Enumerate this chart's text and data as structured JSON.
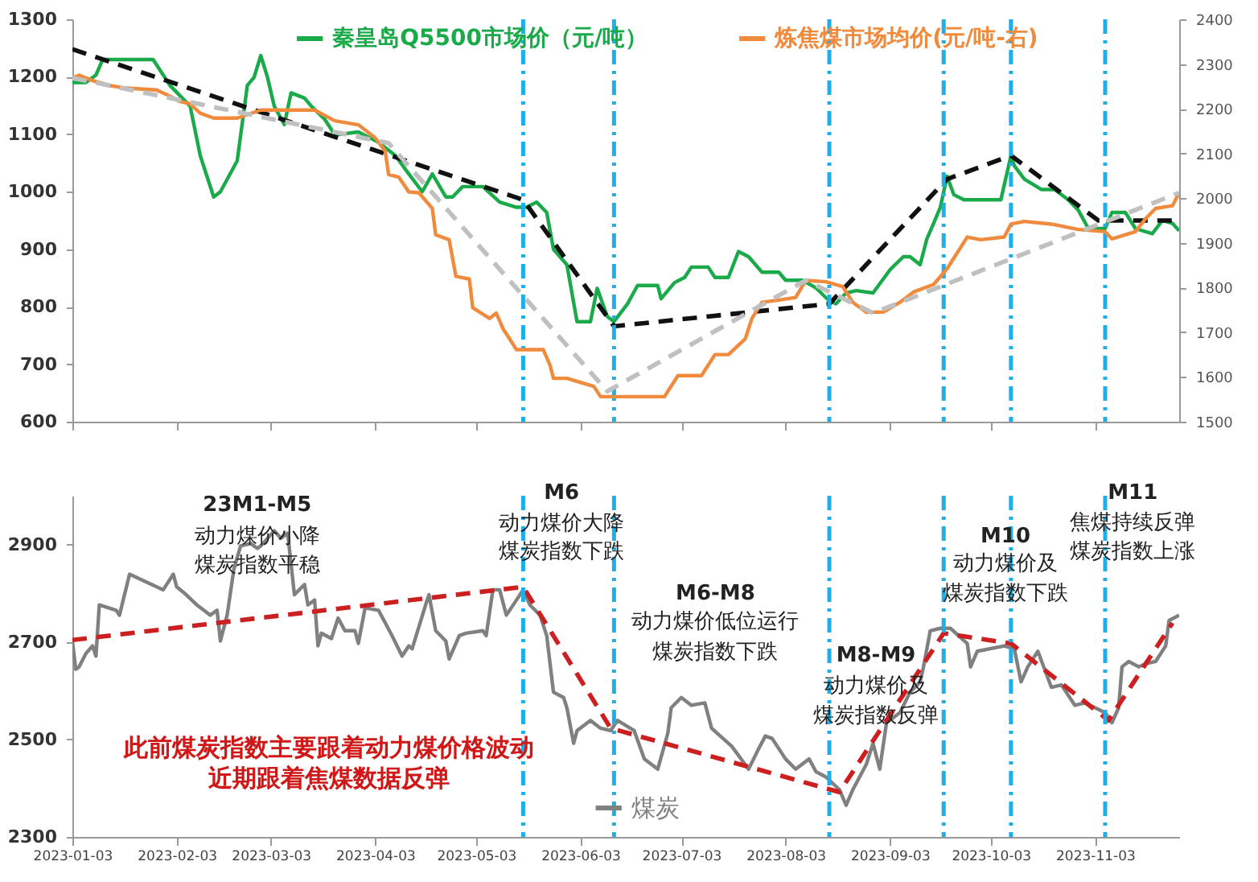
{
  "chart_data": [
    {
      "type": "line",
      "legend": "top",
      "tick_labels": "y",
      "xlim": [
        "2023-01-03",
        "2023-11-28"
      ],
      "xticks": [
        "2023-01-03",
        "2023-02-03",
        "2023-03-03",
        "2023-04-03",
        "2023-05-03",
        "2023-06-03",
        "2023-07-03",
        "2023-08-03",
        "2023-09-03",
        "2023-10-03",
        "2023-11-03"
      ],
      "ylim": [
        600,
        1300
      ],
      "yticks": [
        600,
        700,
        800,
        900,
        1000,
        1100,
        1200,
        1300
      ],
      "y2lim": [
        1500,
        2400
      ],
      "y2ticks": [
        1500,
        1600,
        1700,
        1800,
        1900,
        2000,
        2100,
        2200,
        2300,
        2400
      ],
      "ref_lines": [
        {
          "axis": "x",
          "value": "2023-05-17",
          "color": "#1eaee8"
        },
        {
          "axis": "x",
          "value": "2023-06-13",
          "color": "#1eaee8"
        },
        {
          "axis": "x",
          "value": "2023-08-16",
          "color": "#1eaee8"
        },
        {
          "axis": "x",
          "value": "2023-09-19",
          "color": "#1eaee8"
        },
        {
          "axis": "x",
          "value": "2023-10-09",
          "color": "#1eaee8"
        },
        {
          "axis": "x",
          "value": "2023-11-06",
          "color": "#1eaee8"
        }
      ],
      "series": [
        {
          "name": "秦皇岛Q5500市场价（元/吨）",
          "color": "#1aaa4a",
          "x": [
            "2023-01-03",
            "2023-01-07",
            "2023-01-10",
            "2023-01-12",
            "2023-01-27",
            "2023-02-01",
            "2023-02-07",
            "2023-02-10",
            "2023-02-14",
            "2023-02-16",
            "2023-02-21",
            "2023-02-24",
            "2023-02-26",
            "2023-02-28",
            "2023-03-02",
            "2023-03-04",
            "2023-03-07",
            "2023-03-09",
            "2023-03-13",
            "2023-03-15",
            "2023-03-19",
            "2023-03-22",
            "2023-03-29",
            "2023-04-04",
            "2023-04-09",
            "2023-04-13",
            "2023-04-17",
            "2023-04-20",
            "2023-04-24",
            "2023-04-26",
            "2023-04-29",
            "2023-05-05",
            "2023-05-10",
            "2023-05-15",
            "2023-05-18",
            "2023-05-21",
            "2023-05-24",
            "2023-05-26",
            "2023-05-30",
            "2023-06-02",
            "2023-06-06",
            "2023-06-08",
            "2023-06-11",
            "2023-06-13",
            "2023-06-17",
            "2023-06-20",
            "2023-06-26",
            "2023-06-27",
            "2023-07-01",
            "2023-07-04",
            "2023-07-06",
            "2023-07-11",
            "2023-07-13",
            "2023-07-17",
            "2023-07-20",
            "2023-07-23",
            "2023-07-27",
            "2023-08-01",
            "2023-08-03",
            "2023-08-08",
            "2023-08-12",
            "2023-08-16",
            "2023-08-18",
            "2023-08-21",
            "2023-08-24",
            "2023-08-29",
            "2023-09-03",
            "2023-09-07",
            "2023-09-09",
            "2023-09-12",
            "2023-09-14",
            "2023-09-16",
            "2023-09-18",
            "2023-09-20",
            "2023-09-22",
            "2023-09-25",
            "2023-10-06",
            "2023-10-09",
            "2023-10-10",
            "2023-10-13",
            "2023-10-18",
            "2023-10-22",
            "2023-10-26",
            "2023-10-29",
            "2023-11-01",
            "2023-11-06",
            "2023-11-08",
            "2023-11-12",
            "2023-11-15",
            "2023-11-20",
            "2023-11-23",
            "2023-11-26",
            "2023-11-28"
          ],
          "values": [
            1190,
            1190,
            1203,
            1230,
            1230,
            1185,
            1149,
            1063,
            991,
            1000,
            1054,
            1185,
            1199,
            1237,
            1199,
            1149,
            1117,
            1172,
            1163,
            1149,
            1126,
            1099,
            1104,
            1086,
            1063,
            1031,
            1000,
            1031,
            991,
            991,
            1009,
            1009,
            982,
            973,
            973,
            982,
            964,
            900,
            873,
            774,
            774,
            832,
            783,
            774,
            805,
            837,
            837,
            814,
            842,
            851,
            869,
            869,
            851,
            851,
            896,
            887,
            860,
            860,
            846,
            846,
            833,
            810,
            805,
            824,
            828,
            824,
            864,
            887,
            887,
            873,
            918,
            945,
            973,
            1027,
            995,
            986,
            986,
            1063,
            1045,
            1022,
            1004,
            1004,
            986,
            968,
            936,
            936,
            964,
            964,
            936,
            927,
            950,
            945,
            932
          ]
        },
        {
          "name": "炼焦煤市场均价(元/吨-右)",
          "color": "#f08a3c",
          "axis": "y2",
          "x": [
            "2023-01-03",
            "2023-01-05",
            "2023-01-09",
            "2023-01-14",
            "2023-01-19",
            "2023-01-28",
            "2023-02-01",
            "2023-02-04",
            "2023-02-07",
            "2023-02-10",
            "2023-02-14",
            "2023-02-21",
            "2023-02-28",
            "2023-03-16",
            "2023-03-22",
            "2023-03-29",
            "2023-04-03",
            "2023-04-06",
            "2023-04-07",
            "2023-04-10",
            "2023-04-13",
            "2023-04-16",
            "2023-04-20",
            "2023-04-21",
            "2023-04-25",
            "2023-04-27",
            "2023-05-01",
            "2023-05-02",
            "2023-05-07",
            "2023-05-09",
            "2023-05-11",
            "2023-05-13",
            "2023-05-15",
            "2023-05-23",
            "2023-05-25",
            "2023-05-26",
            "2023-05-30",
            "2023-06-07",
            "2023-06-09",
            "2023-06-28",
            "2023-07-02",
            "2023-07-09",
            "2023-07-13",
            "2023-07-17",
            "2023-07-22",
            "2023-07-24",
            "2023-07-27",
            "2023-08-01",
            "2023-08-06",
            "2023-08-09",
            "2023-08-15",
            "2023-08-20",
            "2023-08-23",
            "2023-08-27",
            "2023-09-01",
            "2023-09-06",
            "2023-09-10",
            "2023-09-16",
            "2023-09-20",
            "2023-09-26",
            "2023-09-30",
            "2023-10-07",
            "2023-10-09",
            "2023-10-13",
            "2023-10-21",
            "2023-10-29",
            "2023-11-06",
            "2023-11-08",
            "2023-11-15",
            "2023-11-18",
            "2023-11-21",
            "2023-11-26",
            "2023-11-28"
          ],
          "values": [
            2269,
            2275,
            2263,
            2252,
            2246,
            2242,
            2228,
            2216,
            2211,
            2190,
            2179,
            2179,
            2197,
            2197,
            2173,
            2164,
            2135,
            2105,
            2053,
            2047,
            2014,
            2012,
            1977,
            1918,
            1907,
            1825,
            1819,
            1755,
            1731,
            1743,
            1708,
            1685,
            1661,
            1661,
            1626,
            1597,
            1597,
            1579,
            1556,
            1556,
            1603,
            1603,
            1650,
            1650,
            1685,
            1731,
            1767,
            1772,
            1778,
            1816,
            1813,
            1802,
            1767,
            1745,
            1745,
            1767,
            1790,
            1807,
            1842,
            1913,
            1907,
            1913,
            1942,
            1948,
            1942,
            1930,
            1925,
            1909,
            1925,
            1954,
            1977,
            1983,
            2012
          ]
        },
        {
          "color": "#111111",
          "line_style": "dashed",
          "x": [
            "2023-01-03",
            "2023-05-17",
            "2023-06-13",
            "2023-08-16",
            "2023-09-20",
            "2023-10-09",
            "2023-11-04",
            "2023-11-26"
          ],
          "values": [
            1248,
            986,
            766,
            805,
            1022,
            1063,
            950,
            950
          ]
        },
        {
          "color": "#c0c0c0",
          "line_style": "dashed",
          "axis": "y2",
          "x": [
            "2023-01-03",
            "2023-04-07",
            "2023-06-11",
            "2023-08-09",
            "2023-08-29",
            "2023-11-28"
          ],
          "values": [
            2269,
            2123,
            1568,
            1816,
            1743,
            2012
          ]
        }
      ]
    },
    {
      "type": "line",
      "legend": "bottom",
      "xlim": [
        "2023-01-03",
        "2023-11-28"
      ],
      "xticks": [
        "2023-01-03",
        "2023-02-03",
        "2023-03-03",
        "2023-04-03",
        "2023-05-03",
        "2023-06-03",
        "2023-07-03",
        "2023-08-03",
        "2023-09-03",
        "2023-10-03",
        "2023-11-03"
      ],
      "ylim": [
        2300,
        3000
      ],
      "yticks": [
        2300,
        2500,
        2700,
        2900
      ],
      "ref_lines": [
        {
          "axis": "x",
          "value": "2023-05-17",
          "color": "#1eaee8"
        },
        {
          "axis": "x",
          "value": "2023-06-13",
          "color": "#1eaee8"
        },
        {
          "axis": "x",
          "value": "2023-08-16",
          "color": "#1eaee8"
        },
        {
          "axis": "x",
          "value": "2023-09-19",
          "color": "#1eaee8"
        },
        {
          "axis": "x",
          "value": "2023-10-09",
          "color": "#1eaee8"
        },
        {
          "axis": "x",
          "value": "2023-11-06",
          "color": "#1eaee8"
        }
      ],
      "annotations": [
        "23M1-M5",
        "动力煤价小降",
        "煤炭指数平稳",
        "M6",
        "动力煤价大降",
        "煤炭指数下跌",
        "M6-M8",
        "动力煤价低位运行",
        "煤炭指数下跌",
        "M8-M9",
        "动力煤价及",
        "煤炭指数反弹",
        "M10",
        "动力煤价及",
        "煤炭指数下跌",
        "M11",
        "焦煤持续反弹",
        "煤炭指数上涨",
        "此前煤炭指数主要跟着动力煤价格波动",
        "近期跟着焦煤数据反弹"
      ],
      "series": [
        {
          "name": "煤炭",
          "color": "#808080",
          "x": [
            "2023-01-03",
            "2023-01-04",
            "2023-01-05",
            "2023-01-07",
            "2023-01-09",
            "2023-01-10",
            "2023-01-11",
            "2023-01-16",
            "2023-01-17",
            "2023-01-20",
            "2023-01-30",
            "2023-02-02",
            "2023-02-03",
            "2023-02-05",
            "2023-02-09",
            "2023-02-13",
            "2023-02-15",
            "2023-02-16",
            "2023-02-18",
            "2023-02-20",
            "2023-02-22",
            "2023-02-25",
            "2023-02-27",
            "2023-02-28",
            "2023-03-04",
            "2023-03-06",
            "2023-03-08",
            "2023-03-10",
            "2023-03-13",
            "2023-03-14",
            "2023-03-16",
            "2023-03-17",
            "2023-03-18",
            "2023-03-21",
            "2023-03-23",
            "2023-03-25",
            "2023-03-28",
            "2023-03-29",
            "2023-03-31",
            "2023-04-04",
            "2023-04-08",
            "2023-04-11",
            "2023-04-13",
            "2023-04-14",
            "2023-04-18",
            "2023-04-19",
            "2023-04-21",
            "2023-04-24",
            "2023-04-25",
            "2023-04-28",
            "2023-04-30",
            "2023-05-05",
            "2023-05-06",
            "2023-05-08",
            "2023-05-10",
            "2023-05-12",
            "2023-05-15",
            "2023-05-17",
            "2023-05-19",
            "2023-05-22",
            "2023-05-24",
            "2023-05-26",
            "2023-05-29",
            "2023-05-30",
            "2023-06-01",
            "2023-06-02",
            "2023-06-06",
            "2023-06-09",
            "2023-06-12",
            "2023-06-14",
            "2023-06-19",
            "2023-06-22",
            "2023-06-26",
            "2023-06-29",
            "2023-06-30",
            "2023-07-03",
            "2023-07-06",
            "2023-07-10",
            "2023-07-12",
            "2023-07-18",
            "2023-07-23",
            "2023-07-26",
            "2023-07-28",
            "2023-07-30",
            "2023-08-03",
            "2023-08-06",
            "2023-08-10",
            "2023-08-12",
            "2023-08-15",
            "2023-08-19",
            "2023-08-21",
            "2023-08-23",
            "2023-08-25",
            "2023-08-27",
            "2023-08-29",
            "2023-08-31",
            "2023-09-02",
            "2023-09-06",
            "2023-09-09",
            "2023-09-12",
            "2023-09-13",
            "2023-09-15",
            "2023-09-18",
            "2023-09-21",
            "2023-09-26",
            "2023-09-27",
            "2023-09-29",
            "2023-10-07",
            "2023-10-10",
            "2023-10-12",
            "2023-10-14",
            "2023-10-17",
            "2023-10-21",
            "2023-10-24",
            "2023-10-28",
            "2023-10-31",
            "2023-11-03",
            "2023-11-06",
            "2023-11-08",
            "2023-11-10",
            "2023-11-11",
            "2023-11-13",
            "2023-11-16",
            "2023-11-18",
            "2023-11-21",
            "2023-11-24",
            "2023-11-25",
            "2023-11-28"
          ],
          "values": [
            2702,
            2644,
            2649,
            2676,
            2692,
            2671,
            2776,
            2765,
            2755,
            2839,
            2807,
            2839,
            2813,
            2802,
            2776,
            2755,
            2765,
            2702,
            2755,
            2849,
            2897,
            2902,
            2892,
            2897,
            2928,
            2913,
            2923,
            2797,
            2818,
            2776,
            2786,
            2692,
            2718,
            2707,
            2749,
            2723,
            2723,
            2697,
            2770,
            2765,
            2713,
            2671,
            2692,
            2686,
            2776,
            2797,
            2723,
            2702,
            2665,
            2713,
            2718,
            2723,
            2713,
            2807,
            2807,
            2755,
            2786,
            2807,
            2776,
            2755,
            2713,
            2597,
            2586,
            2565,
            2492,
            2518,
            2539,
            2523,
            2518,
            2539,
            2518,
            2460,
            2439,
            2513,
            2565,
            2586,
            2570,
            2575,
            2523,
            2486,
            2439,
            2481,
            2507,
            2502,
            2460,
            2439,
            2460,
            2434,
            2423,
            2397,
            2365,
            2397,
            2423,
            2449,
            2492,
            2439,
            2534,
            2555,
            2597,
            2618,
            2649,
            2723,
            2728,
            2728,
            2697,
            2649,
            2681,
            2692,
            2686,
            2618,
            2649,
            2681,
            2607,
            2612,
            2570,
            2575,
            2565,
            2555,
            2534,
            2565,
            2649,
            2660,
            2649,
            2655,
            2660,
            2692,
            2744,
            2755
          ]
        },
        {
          "color": "#cc1f1f",
          "line_style": "dashed",
          "x": [
            "2023-01-03",
            "2023-05-17",
            "2023-06-12",
            "2023-08-19",
            "2023-09-19",
            "2023-10-09",
            "2023-11-07",
            "2023-11-26"
          ],
          "values": [
            2704,
            2813,
            2523,
            2392,
            2718,
            2697,
            2539,
            2739
          ]
        }
      ]
    }
  ]
}
